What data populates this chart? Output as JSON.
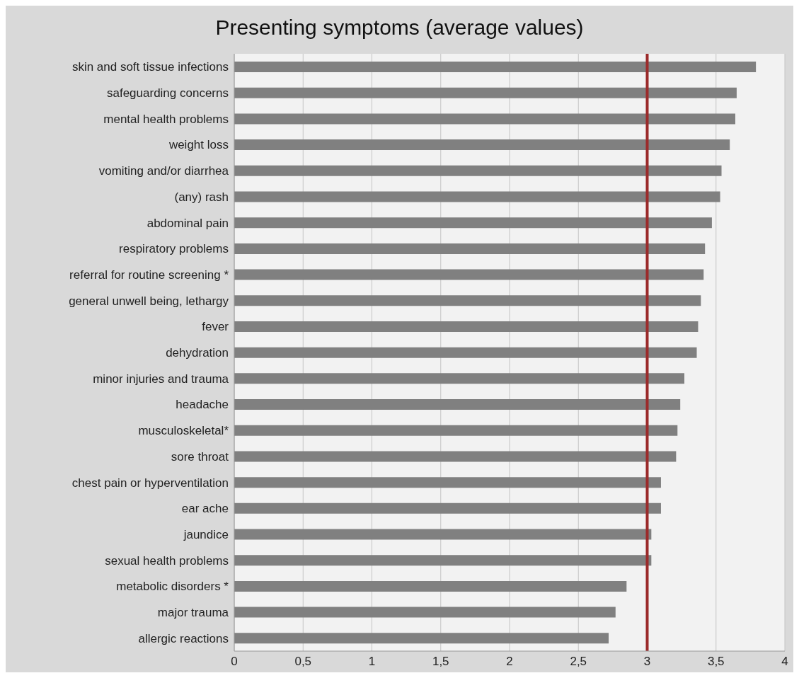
{
  "chart_data": {
    "type": "bar",
    "orientation": "horizontal",
    "title": "Presenting symptoms (average values)",
    "categories": [
      "skin and soft tissue infections",
      "safeguarding concerns",
      "mental health problems",
      "weight loss",
      "vomiting and/or diarrhea",
      "(any) rash",
      "abdominal pain",
      "respiratory problems",
      "referral for routine screening *",
      "general unwell being, lethargy",
      "fever",
      "dehydration",
      "minor injuries and trauma",
      "headache",
      "musculoskeletal*",
      "sore throat",
      "chest pain or hyperventilation",
      "ear ache",
      "jaundice",
      "sexual health problems",
      "metabolic disorders *",
      "major trauma",
      "allergic reactions"
    ],
    "values": [
      3.79,
      3.65,
      3.64,
      3.6,
      3.54,
      3.53,
      3.47,
      3.42,
      3.41,
      3.39,
      3.37,
      3.36,
      3.27,
      3.24,
      3.22,
      3.21,
      3.1,
      3.1,
      3.03,
      3.03,
      2.85,
      2.77,
      2.72
    ],
    "color": "#808080",
    "xlim": [
      0,
      4
    ],
    "xticks": [
      0,
      {
        "value": 0.5,
        "label": "0,5"
      },
      1,
      {
        "value": 1.5,
        "label": "1,5"
      },
      2,
      {
        "value": 2.5,
        "label": "2,5"
      },
      3,
      {
        "value": 3.5,
        "label": "3,5"
      },
      4
    ],
    "grid": "x",
    "ref_lines": [
      {
        "axis": "x",
        "value": 3,
        "color": "#9b2b2b"
      }
    ]
  }
}
